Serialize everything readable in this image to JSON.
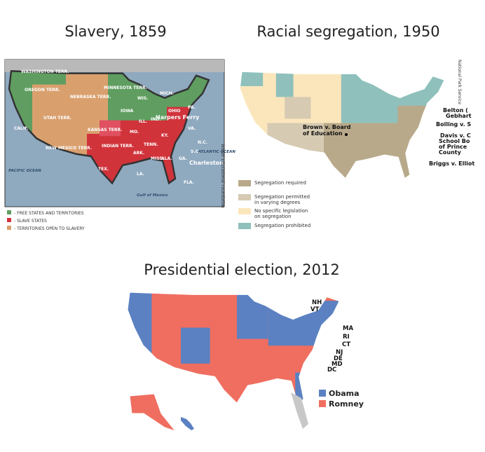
{
  "panels": [
    {
      "title": "Slavery, 1859",
      "map_labels": [
        "WASHINGTON TERR.",
        "OREGON TERR.",
        "CALIF.",
        "UTAH TERR.",
        "NEBRASKA TERR.",
        "MINNESOTA TERR.",
        "KANSAS TERR.",
        "NEW MEXICO TERR.",
        "INDIAN TERR.",
        "TEX.",
        "IOWA",
        "WIS.",
        "MICH.",
        "ILL.",
        "IND.",
        "OHIO",
        "PA.",
        "MO.",
        "KY.",
        "VA.",
        "TENN.",
        "N.C.",
        "ARK.",
        "MISS.",
        "ALA.",
        "GA.",
        "S.C.",
        "LA.",
        "FLA.",
        "Harpers Ferry",
        "Charleston",
        "PACIFIC OCEAN",
        "ATLANTIC OCEAN",
        "Gulf of Mexico"
      ],
      "credit": "Wolfer Educational Foundation",
      "legend": [
        "- FREE STATES AND TERRITORIES",
        "- SLAVE STATES",
        "- TERRITORIES OPEN TO SLAVERY"
      ]
    },
    {
      "title": "Racial segregation, 1950",
      "map_labels": [
        "Brown v. Board",
        "of Education",
        "Belton (",
        "Gebhart",
        "Bolling v. S",
        "Davis v. C",
        "School Bo",
        "of Prince",
        "County",
        "Briggs v. Elliot"
      ],
      "credit": "National Park Service",
      "legend": [
        [
          "Segregation required"
        ],
        [
          "Segregation permitted",
          "in varying degrees"
        ],
        [
          "No specific legislation",
          "on segregation"
        ],
        [
          "Segregation prohibited"
        ]
      ]
    },
    {
      "title": "Presidential election, 2012",
      "map_labels": [
        "NH",
        "VT",
        "MA",
        "RI",
        "CT",
        "NJ",
        "DE",
        "MD",
        "DC"
      ],
      "legend": [
        "Obama",
        "Romney"
      ]
    }
  ]
}
